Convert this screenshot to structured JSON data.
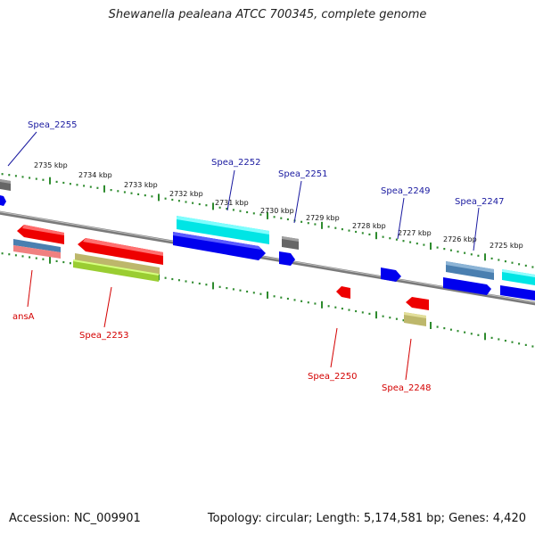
{
  "title": "Shewanella pealeana ATCC 700345, complete genome",
  "footer": {
    "accession": "Accession: NC_009901",
    "summary": "Topology: circular; Length: 5,174,581 bp; Genes: 4,420"
  },
  "kbp_labels": [
    "2735 kbp",
    "2734 kbp",
    "2733 kbp",
    "2732 kbp",
    "2731 kbp",
    "2730 kbp",
    "2729 kbp",
    "2728 kbp",
    "2727 kbp",
    "2726 kbp",
    "2725 kbp"
  ],
  "gene_labels_top": [
    "Spea_2255",
    "Spea_2252",
    "Spea_2251",
    "Spea_2249",
    "Spea_2247"
  ],
  "gene_labels_bottom": [
    "ansA",
    "Spea_2253",
    "Spea_2250",
    "Spea_2248"
  ],
  "colors": {
    "backbone": "#7a7a7a",
    "tick": "#2e8b2e",
    "top_label": "#1a1aa0",
    "bottom_label": "#d40000",
    "gene_red": "#ee0000",
    "gene_blue": "#0000ee",
    "gene_cyan": "#00e5e5",
    "gene_grey": "#666666",
    "gene_steel": "#4a7fb0",
    "gene_salmon": "#f08080",
    "gene_olive": "#bdb76b",
    "gene_lime": "#9acd32"
  }
}
